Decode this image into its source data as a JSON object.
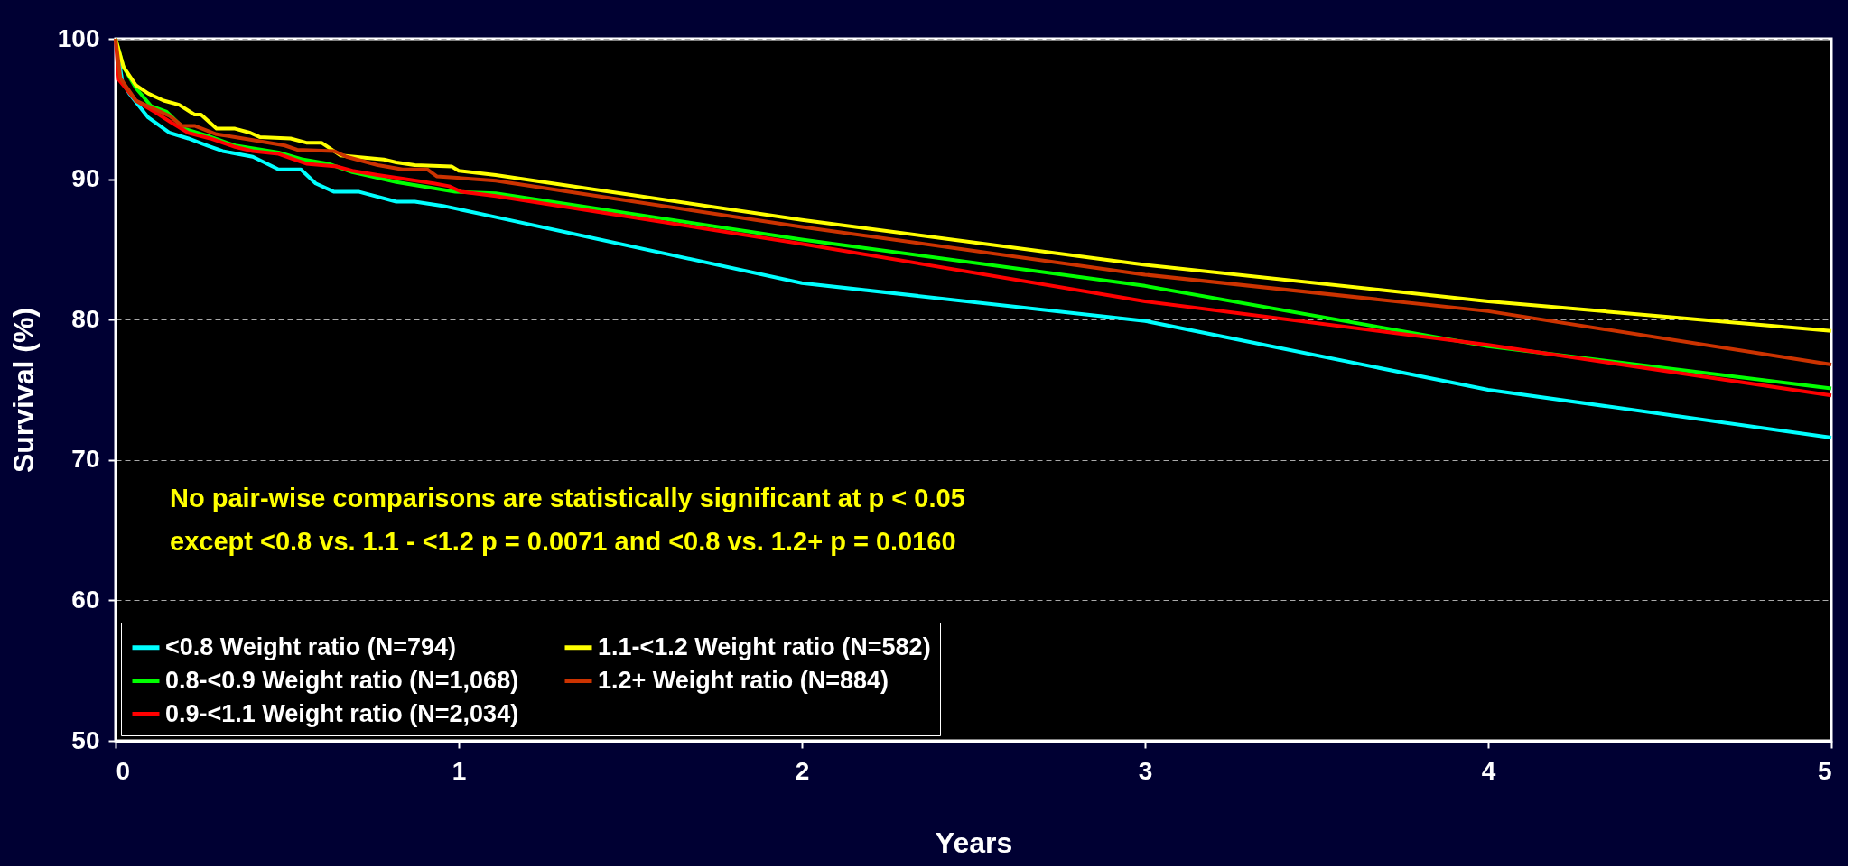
{
  "chart_data": {
    "type": "line",
    "xlabel": "Years",
    "ylabel": "Survival (%)",
    "xlim": [
      0,
      5
    ],
    "xticks": [
      0,
      1,
      2,
      3,
      4,
      5
    ],
    "ylim": [
      50,
      100
    ],
    "yticks": [
      50,
      60,
      70,
      80,
      90,
      100
    ],
    "grid": "y",
    "legend": "bottom left",
    "line_style": "solid",
    "marker": "none",
    "annotations": [
      "No pair-wise comparisons are statistically significant at p < 0.05",
      "except <0.8 vs. 1.1 - <1.2 p = 0.0071 and <0.8 vs. 1.2+ p = 0.0160"
    ],
    "series": [
      {
        "name": "<0.8 Weight ratio (N=794)",
        "color": "#00ffff",
        "x": [
          0,
          0.02,
          0.04,
          0.095,
          0.158,
          0.212,
          0.267,
          0.312,
          0.4,
          0.475,
          0.54,
          0.583,
          0.637,
          0.71,
          0.818,
          0.872,
          0.954,
          1.108,
          2,
          3,
          4,
          5
        ],
        "values": [
          100,
          96.9,
          96.1,
          94.4,
          93.3,
          92.9,
          92.4,
          92.0,
          91.6,
          90.7,
          90.7,
          89.7,
          89.1,
          89.1,
          88.4,
          88.4,
          88.1,
          87.3,
          82.6,
          79.9,
          75.0,
          71.6
        ]
      },
      {
        "name": "0.8-<0.9 Weight ratio (N=1,068)",
        "color": "#00ff00",
        "x": [
          0,
          0.023,
          0.059,
          0.104,
          0.149,
          0.2,
          0.267,
          0.348,
          0.475,
          0.547,
          0.62,
          0.69,
          0.746,
          0.818,
          0.918,
          0.99,
          1.108,
          2,
          3,
          4,
          5
        ],
        "values": [
          100,
          98.0,
          96.5,
          95.2,
          94.8,
          93.6,
          93.1,
          92.4,
          91.9,
          91.4,
          91.1,
          90.5,
          90.2,
          89.8,
          89.4,
          89.1,
          89.0,
          85.7,
          82.4,
          78.1,
          75.1
        ]
      },
      {
        "name": "0.9-<1.1 Weight ratio (N=2,034)",
        "color": "#ff0000",
        "x": [
          0,
          0.009,
          0.059,
          0.113,
          0.158,
          0.212,
          0.276,
          0.348,
          0.4,
          0.475,
          0.556,
          0.646,
          0.69,
          0.764,
          0.845,
          0.927,
          0.972,
          1.008,
          1.108,
          2,
          3,
          4,
          5
        ],
        "values": [
          100,
          97.1,
          95.6,
          94.8,
          94.1,
          93.3,
          92.9,
          92.3,
          92.0,
          91.8,
          91.1,
          90.9,
          90.6,
          90.3,
          90.0,
          89.7,
          89.5,
          89.1,
          88.8,
          85.4,
          81.3,
          78.2,
          74.6
        ]
      },
      {
        "name": "1.1-<1.2 Weight ratio (N=582)",
        "color": "#ffff00",
        "x": [
          0,
          0.023,
          0.059,
          0.095,
          0.14,
          0.185,
          0.23,
          0.249,
          0.294,
          0.348,
          0.393,
          0.42,
          0.51,
          0.556,
          0.6,
          0.655,
          0.782,
          0.818,
          0.872,
          0.98,
          1.0,
          1.108,
          2,
          3,
          4,
          5
        ],
        "values": [
          100,
          98.0,
          96.7,
          96.1,
          95.6,
          95.3,
          94.6,
          94.6,
          93.6,
          93.6,
          93.3,
          93.0,
          92.9,
          92.6,
          92.6,
          91.7,
          91.4,
          91.2,
          91.0,
          90.9,
          90.6,
          90.3,
          87.1,
          83.9,
          81.3,
          79.2
        ]
      },
      {
        "name": "1.2+ Weight ratio (N=884)",
        "color": "#cc3300",
        "x": [
          0,
          0.014,
          0.059,
          0.113,
          0.158,
          0.194,
          0.23,
          0.294,
          0.348,
          0.42,
          0.493,
          0.529,
          0.637,
          0.673,
          0.764,
          0.836,
          0.908,
          0.936,
          1.108,
          2,
          3,
          4,
          5
        ],
        "values": [
          100,
          97.2,
          95.6,
          95.0,
          94.5,
          93.8,
          93.8,
          93.2,
          93.0,
          92.7,
          92.4,
          92.1,
          92.0,
          91.6,
          91.0,
          90.7,
          90.7,
          90.2,
          89.9,
          86.6,
          83.2,
          80.6,
          76.8
        ]
      }
    ]
  }
}
